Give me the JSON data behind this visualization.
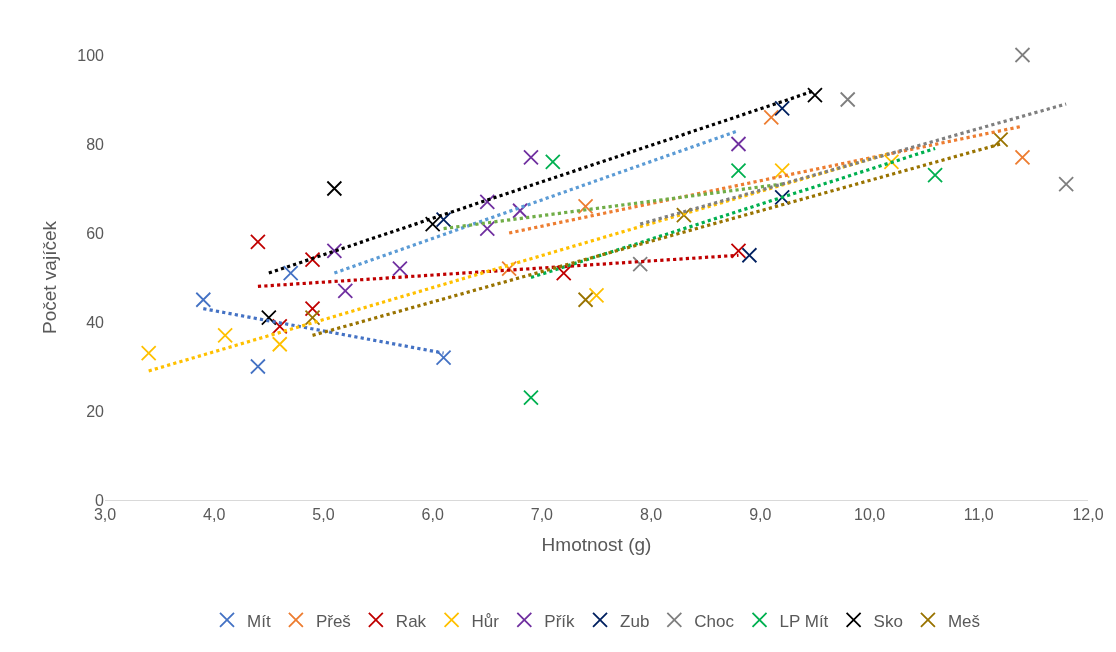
{
  "chart_data": {
    "type": "scatter",
    "xlabel": "Hmotnost (g)",
    "ylabel": "Počet vajíček",
    "marker": "cross",
    "grid": false,
    "legend": "bottom",
    "xlim": [
      3,
      12
    ],
    "xticks": [
      {
        "value": 3,
        "label": "3,0"
      },
      {
        "value": 4,
        "label": "4,0"
      },
      {
        "value": 5,
        "label": "5,0"
      },
      {
        "value": 6,
        "label": "6,0"
      },
      {
        "value": 7,
        "label": "7,0"
      },
      {
        "value": 8,
        "label": "8,0"
      },
      {
        "value": 9,
        "label": "9,0"
      },
      {
        "value": 10,
        "label": "10,0"
      },
      {
        "value": 11,
        "label": "11,0"
      },
      {
        "value": 12,
        "label": "12,0"
      }
    ],
    "ylim": [
      0,
      100
    ],
    "yticks": [
      0,
      20,
      40,
      60,
      80,
      100
    ],
    "series": [
      {
        "name": "Mít",
        "color": "#4472c4",
        "x": [
          3.9,
          4.4,
          4.7,
          6.1
        ],
        "values": [
          45,
          30,
          51,
          32
        ]
      },
      {
        "name": "Přeš",
        "color": "#ed7d31",
        "x": [
          6.7,
          7.4,
          9.1,
          11.4
        ],
        "values": [
          52,
          66,
          86,
          77
        ]
      },
      {
        "name": "Rak",
        "color": "#c00000",
        "x": [
          4.4,
          4.9,
          4.9,
          4.6,
          7.2,
          8.8
        ],
        "values": [
          58,
          54,
          43,
          39,
          51,
          56
        ]
      },
      {
        "name": "Hůr",
        "color": "#ffc000",
        "x": [
          3.4,
          4.1,
          4.6,
          7.5,
          9.2,
          10.2
        ],
        "values": [
          33,
          37,
          35,
          46,
          74,
          76
        ]
      },
      {
        "name": "Přík",
        "color": "#7030a0",
        "x": [
          5.1,
          5.7,
          5.2,
          6.9,
          6.5,
          6.5,
          6.8,
          8.8
        ],
        "values": [
          56,
          52,
          47,
          77,
          67,
          61,
          65,
          80
        ]
      },
      {
        "name": "Zub",
        "color": "#002060",
        "x": [
          6.1,
          9.2,
          9.2,
          8.9
        ],
        "values": [
          63,
          88,
          68,
          55
        ]
      },
      {
        "name": "Choc",
        "color": "#7f7f7f",
        "x": [
          7.9,
          9.8,
          11.4,
          11.8
        ],
        "values": [
          53,
          90,
          100,
          71
        ]
      },
      {
        "name": "LP Mít",
        "color": "#00b050",
        "x": [
          7.1,
          6.9,
          8.8,
          10.6
        ],
        "values": [
          76,
          23,
          74,
          73
        ]
      },
      {
        "name": "Sko",
        "color": "#000000",
        "x": [
          5.1,
          6.0,
          4.5,
          9.5
        ],
        "values": [
          70,
          62,
          41,
          91
        ]
      },
      {
        "name": "Meš",
        "color": "#997300",
        "x": [
          4.9,
          7.4,
          8.3,
          11.2
        ],
        "values": [
          41,
          45,
          64,
          81
        ]
      },
      {
        "type": "line",
        "line_style": "dotted",
        "marker": "none",
        "color": "#4472c4",
        "x": [
          3.9,
          6.1
        ],
        "values": [
          43,
          33
        ]
      },
      {
        "type": "line",
        "line_style": "dotted",
        "marker": "none",
        "color": "#ed7d31",
        "x": [
          6.7,
          11.4
        ],
        "values": [
          60,
          84
        ]
      },
      {
        "type": "line",
        "line_style": "dotted",
        "marker": "none",
        "color": "#c00000",
        "x": [
          4.4,
          8.8
        ],
        "values": [
          48,
          55
        ]
      },
      {
        "type": "line",
        "line_style": "dotted",
        "marker": "none",
        "color": "#ffc000",
        "x": [
          3.4,
          10.2
        ],
        "values": [
          29,
          78
        ]
      },
      {
        "type": "line",
        "line_style": "dotted",
        "marker": "none",
        "color": "#5b9bd5",
        "x": [
          5.1,
          8.8
        ],
        "values": [
          51,
          83
        ]
      },
      {
        "type": "line",
        "line_style": "dotted",
        "marker": "none",
        "color": "#70ad47",
        "x": [
          6.1,
          9.2
        ],
        "values": [
          61,
          71
        ]
      },
      {
        "type": "line",
        "line_style": "dotted",
        "marker": "none",
        "color": "#7f7f7f",
        "x": [
          7.9,
          11.8
        ],
        "values": [
          62,
          89
        ]
      },
      {
        "type": "line",
        "line_style": "dotted",
        "marker": "none",
        "color": "#00b050",
        "x": [
          6.9,
          10.6
        ],
        "values": [
          50,
          79
        ]
      },
      {
        "type": "line",
        "line_style": "dotted",
        "marker": "none",
        "color": "#000000",
        "x": [
          4.5,
          9.5
        ],
        "values": [
          51,
          92
        ]
      },
      {
        "type": "line",
        "line_style": "dotted",
        "marker": "none",
        "color": "#997300",
        "x": [
          4.9,
          11.2
        ],
        "values": [
          37,
          80
        ]
      }
    ]
  }
}
